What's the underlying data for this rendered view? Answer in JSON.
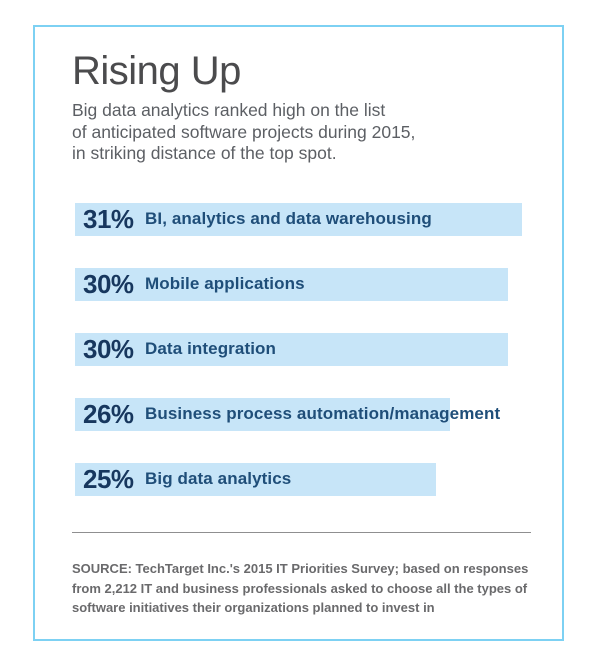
{
  "header": {
    "title": "Rising Up",
    "subtitle": "Big data analytics ranked high on the list\nof anticipated software projects during 2015,\nin striking distance of the top spot."
  },
  "chart_data": {
    "type": "bar",
    "orientation": "horizontal",
    "unit": "%",
    "title": "Rising Up",
    "categories": [
      "BI, analytics and data warehousing",
      "Mobile applications",
      "Data integration",
      "Business process automation/management",
      "Big data analytics"
    ],
    "values": [
      31,
      30,
      30,
      26,
      25
    ],
    "value_labels": [
      "31%",
      "30%",
      "30%",
      "26%",
      "25%"
    ],
    "xlim": [
      0,
      31
    ],
    "grid": false,
    "legend": false
  },
  "footer": {
    "source": "SOURCE: TechTarget Inc.'s 2015 IT Priorities Survey; based on responses\nfrom 2,212 IT and business professionals asked to choose all the types of\nsoftware initiatives their organizations planned to invest in"
  },
  "colors": {
    "card_border": "#7dd1f3",
    "bar_fill": "#c7e5f8",
    "percent_text": "#17375e",
    "category_text": "#1f4e79",
    "title_text": "#4b4b4d",
    "subtitle_text": "#5c5f64",
    "source_text": "#6a6a6c",
    "divider": "#8f8f90"
  }
}
